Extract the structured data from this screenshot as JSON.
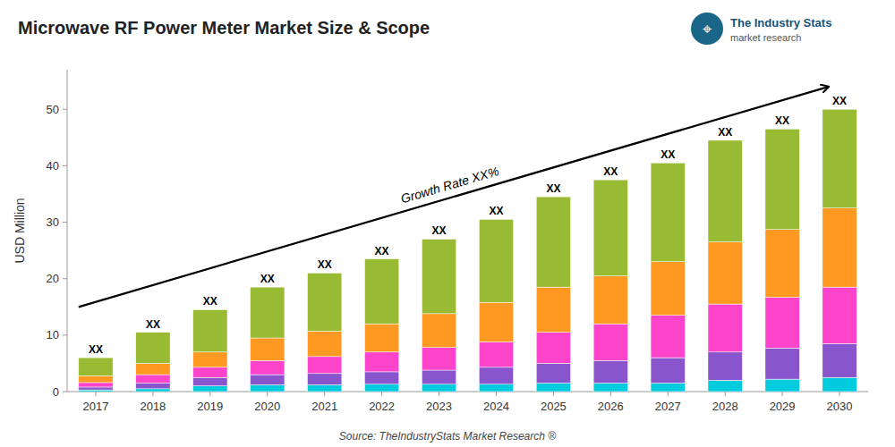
{
  "chart_data": {
    "type": "bar",
    "stacked": true,
    "grid": false,
    "title": "Microwave RF Power Meter Market Size & Scope",
    "ylabel": "USD Million",
    "source": "Source: TheIndustryStats Market Research ®",
    "bar_label": "XX",
    "annotations": [
      "Growth Rate XX%"
    ],
    "logo": {
      "symbol": "⌖",
      "name": "The Industry Stats",
      "tagline": "market research"
    },
    "categories": [
      2017,
      2018,
      2019,
      2020,
      2021,
      2022,
      2023,
      2024,
      2025,
      2026,
      2027,
      2028,
      2029,
      2030
    ],
    "series": [
      {
        "color": "#00CCDD",
        "values": [
          0.3,
          0.5,
          1.0,
          1.2,
          1.2,
          1.3,
          1.3,
          1.3,
          1.5,
          1.5,
          1.5,
          2.0,
          2.2,
          2.5
        ]
      },
      {
        "color": "#8855CC",
        "values": [
          0.5,
          1.0,
          1.5,
          1.8,
          2.0,
          2.2,
          2.5,
          3.0,
          3.5,
          4.0,
          4.5,
          5.0,
          5.5,
          6.0
        ]
      },
      {
        "color": "#FF44CC",
        "values": [
          0.8,
          1.5,
          1.8,
          2.5,
          3.0,
          3.5,
          4.0,
          4.5,
          5.5,
          6.5,
          7.5,
          8.5,
          9.0,
          10.0
        ]
      },
      {
        "color": "#FF9922",
        "values": [
          1.2,
          2.0,
          2.7,
          4.0,
          4.5,
          5.0,
          6.0,
          7.0,
          8.0,
          8.5,
          9.5,
          11.0,
          12.0,
          14.0
        ]
      },
      {
        "color": "#99BB33",
        "values": [
          3.2,
          5.5,
          7.5,
          9.0,
          10.3,
          11.5,
          13.2,
          14.7,
          16.0,
          17.0,
          17.5,
          18.0,
          17.8,
          17.5
        ]
      }
    ],
    "ylim": [
      0,
      57
    ],
    "yticks": [
      0,
      10,
      20,
      30,
      40,
      50
    ]
  }
}
